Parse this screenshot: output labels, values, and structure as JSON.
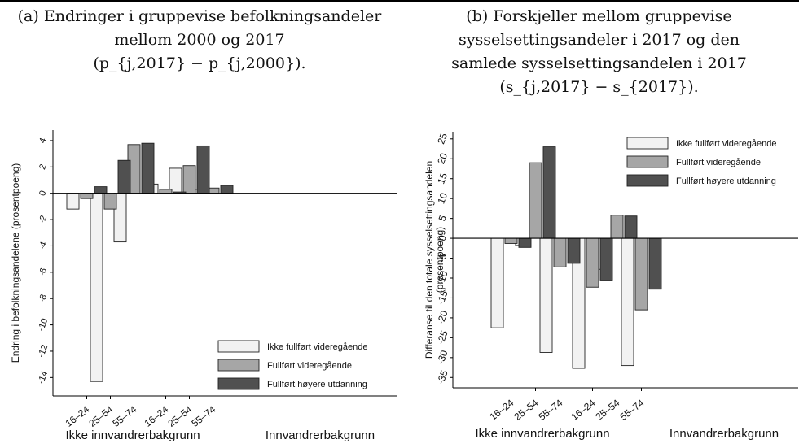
{
  "titles": {
    "a": [
      "(a) Endringer i gruppevise befolkningsandeler",
      "mellom 2000 og 2017",
      "(p_{j,2017} − p_{j,2000})."
    ],
    "b": [
      "(b) Forskjeller mellom gruppevise",
      "sysselsettingsandeler i 2017 og den",
      "samlede sysselsettingsandelen i 2017",
      "(s_{j,2017} − s_{2017})."
    ]
  },
  "colors": {
    "s0": "#f2f2f2",
    "s1": "#a6a6a6",
    "s2": "#505050"
  },
  "chart_data": [
    {
      "type": "bar",
      "ylabel": "Endring i befolkningsandelene (prosentpoeng)",
      "ylim": [
        -15,
        5
      ],
      "yticks": [
        4,
        2,
        0,
        -2,
        -4,
        -6,
        -8,
        -10,
        -12,
        -14
      ],
      "categories": [
        "16–24",
        "25–54",
        "55–74",
        "16–24",
        "25–54",
        "55–74"
      ],
      "groups": [
        {
          "label": "Ikke innvandrerbakgrunn",
          "categories": [
            "16–24",
            "25–54",
            "55–74"
          ]
        },
        {
          "label": "Innvandrerbakgrunn",
          "categories": [
            "16–24",
            "25–54",
            "55–74"
          ]
        }
      ],
      "series": [
        {
          "name": "Ikke fullført videregående",
          "values": [
            -1.2,
            -14.3,
            -3.7,
            0.7,
            1.9,
            0.3
          ]
        },
        {
          "name": "Fullført videregående",
          "values": [
            -0.4,
            -1.2,
            3.7,
            0.3,
            2.1,
            0.4
          ]
        },
        {
          "name": "Fullført høyere utdanning",
          "values": [
            0.5,
            2.5,
            3.8,
            0.1,
            3.6,
            0.6
          ]
        }
      ],
      "legend": "bottom-right",
      "grid": false
    },
    {
      "type": "bar",
      "ylabel": [
        "Differanse til den totale sysselsettingsandelen",
        "(prosentpoeng)"
      ],
      "ylim": [
        -37,
        27
      ],
      "yticks": [
        25,
        20,
        15,
        10,
        5,
        0,
        -5,
        -10,
        -15,
        -20,
        -25,
        -30,
        -35
      ],
      "categories": [
        "16–24",
        "25–54",
        "55–74",
        "16–24",
        "25–54",
        "55–74"
      ],
      "groups": [
        {
          "label": "Ikke innvandrerbakgrunn",
          "categories": [
            "16–24",
            "25–54",
            "55–74"
          ]
        },
        {
          "label": "Innvandrerbakgrunn",
          "categories": [
            "16–24",
            "25–54",
            "55–74"
          ]
        }
      ],
      "series": [
        {
          "name": "Ikke fullført videregående",
          "values": [
            -22.5,
            -1.8,
            -28.7,
            -32.7,
            -7.8,
            -32.0
          ]
        },
        {
          "name": "Fullført videregående",
          "values": [
            -1.3,
            19.0,
            -7.2,
            -12.3,
            5.8,
            -18.0
          ]
        },
        {
          "name": "Fullført høyere utdanning",
          "values": [
            -2.3,
            23.0,
            -6.3,
            -10.5,
            5.6,
            -12.8
          ]
        }
      ],
      "legend": "top-right",
      "grid": false
    }
  ]
}
